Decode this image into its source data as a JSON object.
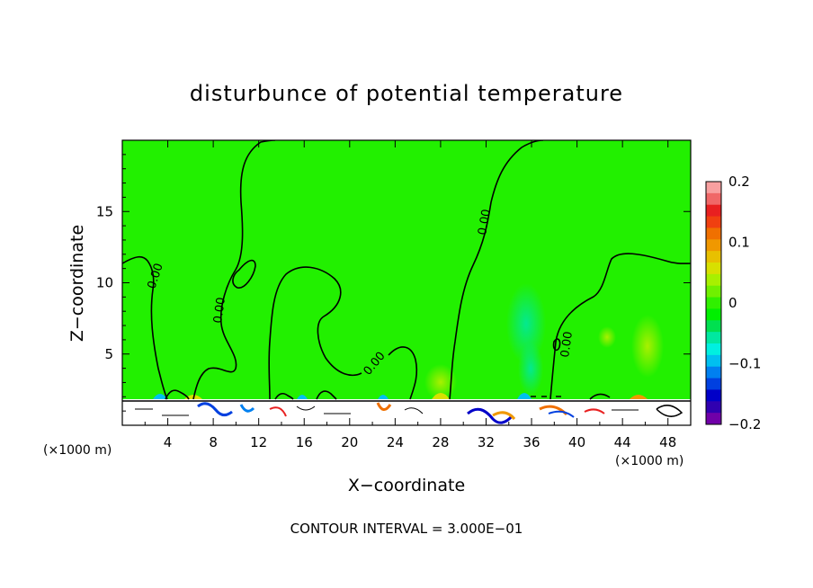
{
  "chart_data": {
    "type": "heatmap",
    "title": "disturbunce of potential temperature",
    "xlabel": "X−coordinate",
    "ylabel": "Z−coordinate",
    "x_unit": "(×1000 m)",
    "z_unit": "(×1000 m)",
    "xlim": [
      0,
      50
    ],
    "ylim": [
      0,
      20
    ],
    "x_ticks": [
      4,
      8,
      12,
      16,
      20,
      24,
      28,
      32,
      36,
      40,
      44,
      48
    ],
    "x_tick_labels": [
      "4",
      "8",
      "12",
      "16",
      "20",
      "24",
      "28",
      "32",
      "36",
      "40",
      "44",
      "48"
    ],
    "y_ticks": [
      5,
      10,
      15
    ],
    "y_tick_labels": [
      "5",
      "10",
      "15"
    ],
    "colorbar": {
      "range": [
        -0.2,
        0.2
      ],
      "tick_values": [
        0.2,
        0.1,
        0,
        -0.1,
        -0.2
      ],
      "tick_labels": [
        "0.2",
        "0.1",
        "0",
        "−0.1",
        "−0.2"
      ],
      "colors": [
        "#f8a0a0",
        "#f06868",
        "#e82020",
        "#f04010",
        "#f07000",
        "#f09800",
        "#e8c000",
        "#d8e000",
        "#a8f000",
        "#70f000",
        "#30f000",
        "#00f000",
        "#00e050",
        "#00e8a0",
        "#00f0e0",
        "#00c0f0",
        "#0080f0",
        "#0040e0",
        "#0000c8",
        "#3000b0",
        "#7000a8"
      ]
    },
    "contour_labels": [
      "0.00",
      "0.00",
      "0.00",
      "0.00",
      "0.00"
    ],
    "contour_interval_text": "CONTOUR INTERVAL = 3.000E−01"
  }
}
